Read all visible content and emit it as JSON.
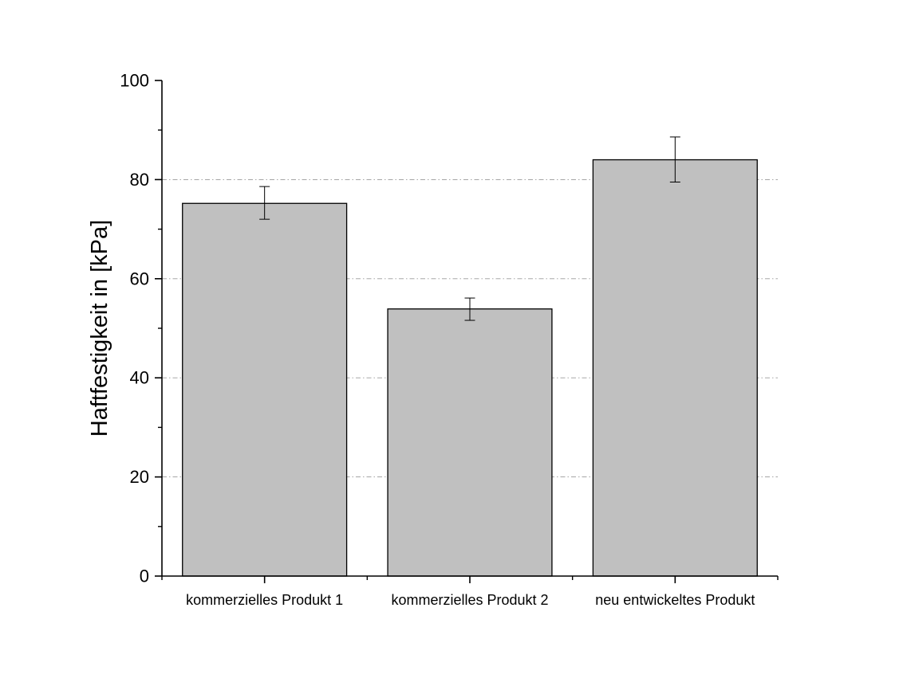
{
  "chart_data": {
    "type": "bar",
    "title": "",
    "xlabel": "",
    "ylabel": "Haftfestigkeit in [kPa]",
    "categories": [
      "kommerzielles Produkt 1",
      "kommerzielles Produkt 2",
      "neu entwickeltes Produkt"
    ],
    "values": [
      75.2,
      53.9,
      84.0
    ],
    "error_low": [
      72.0,
      51.6,
      79.5
    ],
    "error_high": [
      78.6,
      56.1,
      88.6
    ],
    "ylim": [
      0,
      100
    ],
    "yticks": [
      0,
      20,
      40,
      60,
      80,
      100
    ],
    "ytick_labels": [
      "0",
      "20",
      "40",
      "60",
      "80",
      "100"
    ],
    "grid": "horizontal dash-dot",
    "legend": "none",
    "colors": {
      "bar_fill": "#c0c0c0",
      "bar_stroke": "#000000",
      "grid": "#9a9a9a",
      "axis": "#000000"
    }
  }
}
